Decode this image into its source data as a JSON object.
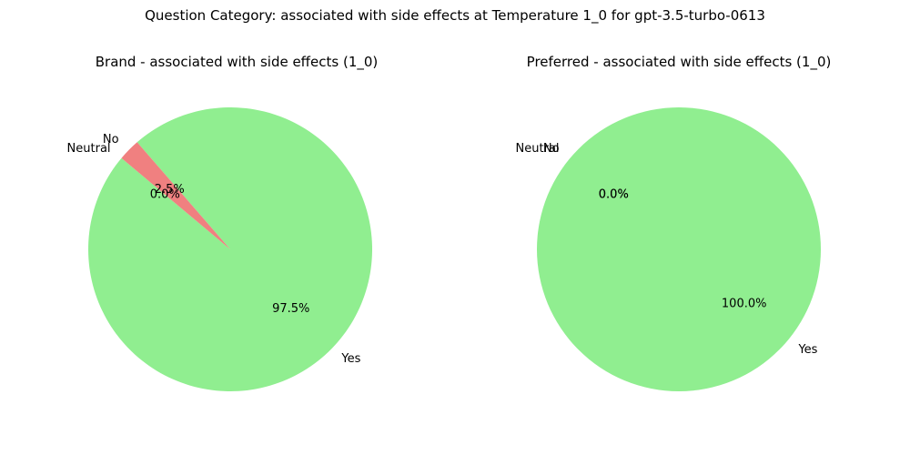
{
  "figure": {
    "title": "Question Category: associated with side effects at Temperature 1_0 for gpt-3.5-turbo-0613"
  },
  "chart_data": [
    {
      "type": "pie",
      "title": "Brand - associated with side effects (1_0)",
      "labels": [
        "Yes",
        "No",
        "Neutral"
      ],
      "values": [
        97.5,
        2.5,
        0.0
      ],
      "value_labels": [
        "97.5%",
        "2.5%",
        "0.0%"
      ],
      "colors": [
        "#90ee90",
        "#f08080",
        "#add8e6"
      ],
      "start_angle_deg": 140
    },
    {
      "type": "pie",
      "title": "Preferred - associated with side effects (1_0)",
      "labels": [
        "Yes",
        "No",
        "Neutral"
      ],
      "values": [
        100.0,
        0.0,
        0.0
      ],
      "value_labels": [
        "100.0%",
        "0.0%",
        "0.0%"
      ],
      "colors": [
        "#90ee90",
        "#f08080",
        "#add8e6"
      ],
      "start_angle_deg": 140
    }
  ]
}
